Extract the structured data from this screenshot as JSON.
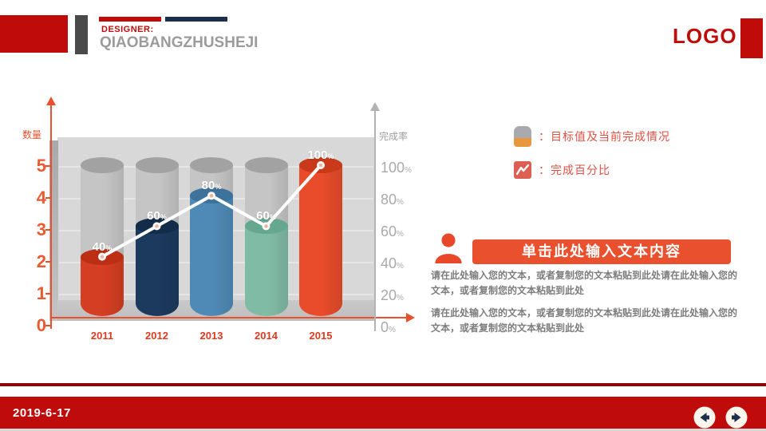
{
  "header": {
    "designer_label": "DESIGNER:",
    "brand_name": "QIAOBANGZHUSHEJI",
    "logo_text": "LOGO"
  },
  "chart_data": {
    "type": "bar",
    "subtype": "3d-cylinder-bars-with-line-overlay",
    "categories": [
      "2011",
      "2012",
      "2013",
      "2014",
      "2015"
    ],
    "series": [
      {
        "name": "目标值",
        "type": "bar",
        "values": [
          100,
          100,
          100,
          100,
          100
        ],
        "color": "#c5c5c5",
        "top_color": "#a2a2a2"
      },
      {
        "name": "当前完成情况",
        "type": "bar",
        "values": [
          40,
          60,
          80,
          60,
          100
        ],
        "colors": [
          "#d43e22",
          "#1c3a5e",
          "#4f8ab6",
          "#80bba6",
          "#e84c2b"
        ],
        "top_colors": [
          "#bc2f15",
          "#122c49",
          "#3d729b",
          "#66a78f",
          "#c93a1a"
        ]
      },
      {
        "name": "完成百分比",
        "type": "line",
        "values": [
          40,
          60,
          80,
          60,
          100
        ],
        "color": "#ffffff",
        "marker_fill": "#f0b49e"
      }
    ],
    "data_labels": [
      40,
      60,
      80,
      60,
      100
    ],
    "data_label_unit": "%",
    "left_axis": {
      "label": "数量",
      "ticks": [
        0,
        1,
        2,
        3,
        4,
        5
      ],
      "color": "#e8502e"
    },
    "right_axis": {
      "label": "完成率",
      "ticks": [
        100,
        80,
        60,
        40,
        20,
        0
      ],
      "unit": "%",
      "color": "#a9a9a9"
    },
    "x_axis": {
      "labels": [
        "2011",
        "2012",
        "2013",
        "2014",
        "2015"
      ],
      "color": "#e0391f"
    },
    "grid": true,
    "ylim_left": [
      0,
      5
    ],
    "ylim_right": [
      0,
      100
    ]
  },
  "legend": {
    "items": [
      {
        "icon": "cylinder-icon",
        "prefix": "：",
        "label": "目标值及当前完成情况"
      },
      {
        "icon": "line-chart-icon",
        "prefix": "：",
        "label": "完成百分比"
      }
    ]
  },
  "content": {
    "banner": "单击此处输入文本内容",
    "paragraph1": "请在此处输入您的文本，或者复制您的文本粘贴到此处请在此处输入您的文本，或者复制您的文本粘贴到此处",
    "paragraph2": "请在此处输入您的文本，或者复制您的文本粘贴到此处请在此处输入您的文本，或者复制您的文本粘贴到此处"
  },
  "footer": {
    "date": "2019-6-17"
  },
  "colors": {
    "brand_red": "#c00b0b",
    "dark_red": "#8b0606",
    "accent_orange": "#e8502e",
    "navy": "#1b2f4a",
    "gray_text": "#9b9b9b"
  }
}
